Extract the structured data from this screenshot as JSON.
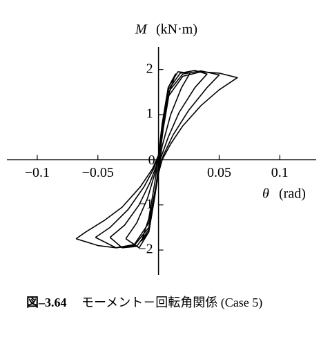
{
  "chart_data": {
    "type": "line",
    "y_label_symbol": "M",
    "y_label_unit": "(kN·m)",
    "x_label_symbol": "θ",
    "x_label_unit": "(rad)",
    "caption_number": "図–3.64",
    "caption_text": "モーメント－回転角関係 (Case 5)",
    "color": "#000000",
    "xlim": [
      -0.125,
      0.13
    ],
    "ylim": [
      -2.55,
      2.5
    ],
    "xticks": [
      {
        "value": -0.1,
        "label": "−0.1"
      },
      {
        "value": -0.05,
        "label": "−0.05"
      },
      0,
      0.05,
      0.1
    ],
    "yticks": [
      {
        "value": -2,
        "label": "−2"
      },
      {
        "value": -1,
        "label": "−1"
      },
      1,
      2
    ],
    "series": [
      {
        "x": [
          -0.068,
          -0.06,
          -0.045,
          -0.03,
          -0.015,
          -0.005,
          0,
          0.003,
          0.008,
          0.02,
          0.035,
          0.05,
          0.065,
          0.05,
          0.035,
          0.02,
          0.01,
          0.003,
          0,
          -0.003,
          -0.008,
          -0.02,
          -0.035,
          -0.05,
          -0.068
        ],
        "values": [
          -1.75,
          -1.6,
          -1.35,
          -1.05,
          -0.6,
          -0.2,
          0.1,
          0.6,
          1.4,
          1.85,
          1.95,
          1.92,
          1.82,
          1.55,
          1.2,
          0.75,
          0.35,
          0,
          -0.3,
          -0.7,
          -1.4,
          -1.88,
          -1.95,
          -1.9,
          -1.75
        ]
      },
      {
        "x": [
          -0.052,
          -0.04,
          -0.025,
          -0.012,
          -0.004,
          0,
          0.003,
          0.008,
          0.02,
          0.035,
          0.05,
          0.04,
          0.025,
          0.012,
          0.004,
          0,
          -0.003,
          -0.008,
          -0.02,
          -0.035,
          -0.052
        ],
        "values": [
          -1.72,
          -1.5,
          -1.1,
          -0.6,
          -0.2,
          0.1,
          0.65,
          1.5,
          1.9,
          1.97,
          1.88,
          1.6,
          1.1,
          0.55,
          0.1,
          -0.25,
          -0.75,
          -1.5,
          -1.9,
          -1.95,
          -1.72
        ]
      },
      {
        "x": [
          -0.04,
          -0.028,
          -0.016,
          -0.007,
          -0.002,
          0,
          0.003,
          0.008,
          0.018,
          0.03,
          0.04,
          0.03,
          0.017,
          0.008,
          0.002,
          0,
          -0.003,
          -0.008,
          -0.018,
          -0.03,
          -0.04
        ],
        "values": [
          -1.72,
          -1.45,
          -1.0,
          -0.5,
          -0.15,
          0.1,
          0.7,
          1.55,
          1.92,
          1.98,
          1.9,
          1.6,
          1.05,
          0.5,
          0.05,
          -0.3,
          -0.8,
          -1.55,
          -1.92,
          -1.95,
          -1.72
        ]
      },
      {
        "x": [
          -0.027,
          -0.018,
          -0.009,
          -0.003,
          0,
          0.003,
          0.008,
          0.016,
          0.026,
          0.019,
          0.01,
          0.003,
          0,
          -0.003,
          -0.008,
          -0.016,
          -0.027
        ],
        "values": [
          -1.75,
          -1.4,
          -0.85,
          -0.3,
          0.1,
          0.75,
          1.6,
          1.95,
          1.92,
          1.6,
          1.0,
          0.3,
          -0.2,
          -0.8,
          -1.6,
          -1.95,
          -1.75
        ]
      },
      {
        "x": [
          -0.014,
          -0.008,
          -0.003,
          0,
          0.003,
          0.008,
          0.014,
          0.009,
          0.004,
          0,
          -0.003,
          -0.008,
          -0.014
        ],
        "values": [
          -1.8,
          -1.3,
          -0.5,
          0.1,
          0.8,
          1.6,
          1.9,
          1.5,
          0.7,
          -0.1,
          -0.8,
          -1.6,
          -1.8
        ]
      }
    ]
  }
}
